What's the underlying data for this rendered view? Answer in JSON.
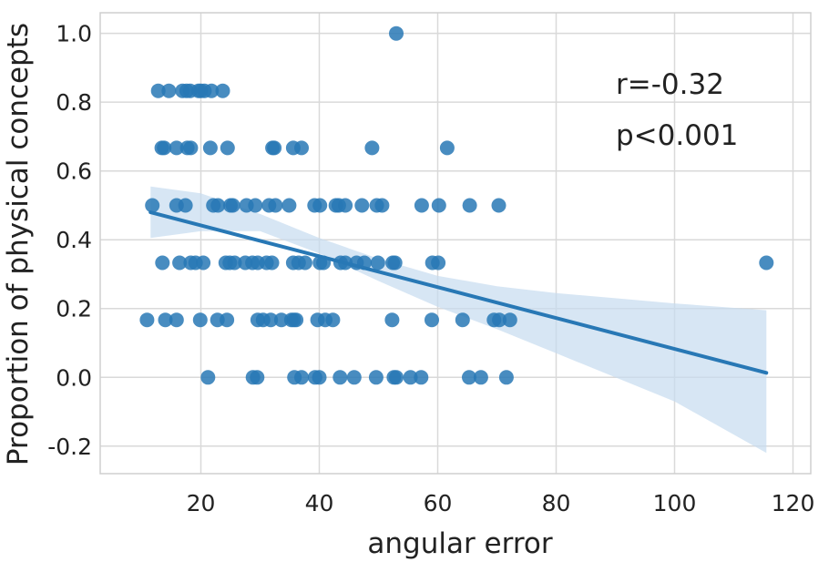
{
  "chart_data": {
    "type": "scatter",
    "xlabel": "angular error",
    "ylabel": "Proportion of physical concepts",
    "xlim": [
      3,
      123
    ],
    "ylim": [
      -0.28,
      1.06
    ],
    "xticks": [
      20,
      40,
      60,
      80,
      100,
      120
    ],
    "yticks": [
      -0.2,
      0.0,
      0.2,
      0.4,
      0.6,
      0.8,
      1.0
    ],
    "xtick_labels": [
      "20",
      "40",
      "60",
      "80",
      "100",
      "120"
    ],
    "ytick_labels": [
      "-0.2",
      "0.0",
      "0.2",
      "0.4",
      "0.6",
      "0.8",
      "1.0"
    ],
    "grid": true,
    "annotations": [
      "r=-0.32",
      "p<0.001"
    ],
    "colors": {
      "points": "#2878b5",
      "line": "#2878b5",
      "band": "#c6dbef"
    },
    "regression": {
      "x": [
        11.5,
        115.5
      ],
      "y": [
        0.48,
        0.013
      ]
    },
    "confidence_band": {
      "x": [
        11.5,
        20,
        30,
        40,
        50,
        60,
        70,
        80,
        90,
        100,
        115.5
      ],
      "upper": [
        0.555,
        0.535,
        0.475,
        0.405,
        0.345,
        0.295,
        0.265,
        0.245,
        0.23,
        0.215,
        0.195
      ],
      "lower": [
        0.405,
        0.425,
        0.425,
        0.36,
        0.28,
        0.205,
        0.14,
        0.07,
        0.0,
        -0.07,
        -0.22
      ]
    },
    "points": [
      {
        "x": 53.0,
        "y": 1.0
      },
      {
        "x": 12.8,
        "y": 0.833
      },
      {
        "x": 14.6,
        "y": 0.833
      },
      {
        "x": 16.9,
        "y": 0.833
      },
      {
        "x": 17.6,
        "y": 0.833
      },
      {
        "x": 18.2,
        "y": 0.833
      },
      {
        "x": 19.6,
        "y": 0.833
      },
      {
        "x": 20.0,
        "y": 0.833
      },
      {
        "x": 20.6,
        "y": 0.833
      },
      {
        "x": 21.8,
        "y": 0.833
      },
      {
        "x": 23.7,
        "y": 0.833
      },
      {
        "x": 13.4,
        "y": 0.667
      },
      {
        "x": 13.8,
        "y": 0.667
      },
      {
        "x": 15.9,
        "y": 0.667
      },
      {
        "x": 17.7,
        "y": 0.667
      },
      {
        "x": 18.3,
        "y": 0.667
      },
      {
        "x": 21.6,
        "y": 0.667
      },
      {
        "x": 24.5,
        "y": 0.667
      },
      {
        "x": 32.1,
        "y": 0.667
      },
      {
        "x": 32.4,
        "y": 0.667
      },
      {
        "x": 35.6,
        "y": 0.667
      },
      {
        "x": 37.0,
        "y": 0.667
      },
      {
        "x": 48.9,
        "y": 0.667
      },
      {
        "x": 61.6,
        "y": 0.667
      },
      {
        "x": 11.8,
        "y": 0.5
      },
      {
        "x": 15.9,
        "y": 0.5
      },
      {
        "x": 17.4,
        "y": 0.5
      },
      {
        "x": 22.1,
        "y": 0.5
      },
      {
        "x": 22.9,
        "y": 0.5
      },
      {
        "x": 25.0,
        "y": 0.5
      },
      {
        "x": 25.4,
        "y": 0.5
      },
      {
        "x": 27.7,
        "y": 0.5
      },
      {
        "x": 29.2,
        "y": 0.5
      },
      {
        "x": 31.5,
        "y": 0.5
      },
      {
        "x": 32.6,
        "y": 0.5
      },
      {
        "x": 34.9,
        "y": 0.5
      },
      {
        "x": 39.2,
        "y": 0.5
      },
      {
        "x": 40.1,
        "y": 0.5
      },
      {
        "x": 42.8,
        "y": 0.5
      },
      {
        "x": 43.3,
        "y": 0.5
      },
      {
        "x": 44.4,
        "y": 0.5
      },
      {
        "x": 47.2,
        "y": 0.5
      },
      {
        "x": 49.7,
        "y": 0.5
      },
      {
        "x": 50.6,
        "y": 0.5
      },
      {
        "x": 57.3,
        "y": 0.5
      },
      {
        "x": 60.2,
        "y": 0.5
      },
      {
        "x": 65.4,
        "y": 0.5
      },
      {
        "x": 70.3,
        "y": 0.5
      },
      {
        "x": 13.5,
        "y": 0.333
      },
      {
        "x": 16.4,
        "y": 0.333
      },
      {
        "x": 18.3,
        "y": 0.333
      },
      {
        "x": 19.1,
        "y": 0.333
      },
      {
        "x": 20.4,
        "y": 0.333
      },
      {
        "x": 24.2,
        "y": 0.333
      },
      {
        "x": 24.9,
        "y": 0.333
      },
      {
        "x": 25.7,
        "y": 0.333
      },
      {
        "x": 27.5,
        "y": 0.333
      },
      {
        "x": 28.7,
        "y": 0.333
      },
      {
        "x": 29.6,
        "y": 0.333
      },
      {
        "x": 31.1,
        "y": 0.333
      },
      {
        "x": 32.0,
        "y": 0.333
      },
      {
        "x": 35.6,
        "y": 0.333
      },
      {
        "x": 36.5,
        "y": 0.333
      },
      {
        "x": 37.6,
        "y": 0.333
      },
      {
        "x": 40.1,
        "y": 0.333
      },
      {
        "x": 40.7,
        "y": 0.333
      },
      {
        "x": 43.6,
        "y": 0.333
      },
      {
        "x": 44.4,
        "y": 0.333
      },
      {
        "x": 46.3,
        "y": 0.333
      },
      {
        "x": 47.6,
        "y": 0.333
      },
      {
        "x": 49.9,
        "y": 0.333
      },
      {
        "x": 52.4,
        "y": 0.333
      },
      {
        "x": 52.8,
        "y": 0.333
      },
      {
        "x": 59.1,
        "y": 0.333
      },
      {
        "x": 60.1,
        "y": 0.333
      },
      {
        "x": 115.5,
        "y": 0.333
      },
      {
        "x": 10.9,
        "y": 0.167
      },
      {
        "x": 14.0,
        "y": 0.167
      },
      {
        "x": 15.9,
        "y": 0.167
      },
      {
        "x": 19.9,
        "y": 0.167
      },
      {
        "x": 22.8,
        "y": 0.167
      },
      {
        "x": 24.4,
        "y": 0.167
      },
      {
        "x": 29.6,
        "y": 0.167
      },
      {
        "x": 30.5,
        "y": 0.167
      },
      {
        "x": 31.8,
        "y": 0.167
      },
      {
        "x": 33.6,
        "y": 0.167
      },
      {
        "x": 35.3,
        "y": 0.167
      },
      {
        "x": 35.7,
        "y": 0.167
      },
      {
        "x": 36.1,
        "y": 0.167
      },
      {
        "x": 39.7,
        "y": 0.167
      },
      {
        "x": 41.0,
        "y": 0.167
      },
      {
        "x": 42.3,
        "y": 0.167
      },
      {
        "x": 52.3,
        "y": 0.167
      },
      {
        "x": 59.0,
        "y": 0.167
      },
      {
        "x": 64.2,
        "y": 0.167
      },
      {
        "x": 69.5,
        "y": 0.167
      },
      {
        "x": 70.4,
        "y": 0.167
      },
      {
        "x": 72.2,
        "y": 0.167
      },
      {
        "x": 21.2,
        "y": 0.0
      },
      {
        "x": 28.8,
        "y": 0.0
      },
      {
        "x": 29.5,
        "y": 0.0
      },
      {
        "x": 35.8,
        "y": 0.0
      },
      {
        "x": 37.0,
        "y": 0.0
      },
      {
        "x": 39.3,
        "y": 0.0
      },
      {
        "x": 40.0,
        "y": 0.0
      },
      {
        "x": 43.5,
        "y": 0.0
      },
      {
        "x": 45.9,
        "y": 0.0
      },
      {
        "x": 49.6,
        "y": 0.0
      },
      {
        "x": 52.6,
        "y": 0.0
      },
      {
        "x": 53.0,
        "y": 0.0
      },
      {
        "x": 55.4,
        "y": 0.0
      },
      {
        "x": 57.2,
        "y": 0.0
      },
      {
        "x": 65.3,
        "y": 0.0
      },
      {
        "x": 67.3,
        "y": 0.0
      },
      {
        "x": 71.6,
        "y": 0.0
      }
    ]
  }
}
